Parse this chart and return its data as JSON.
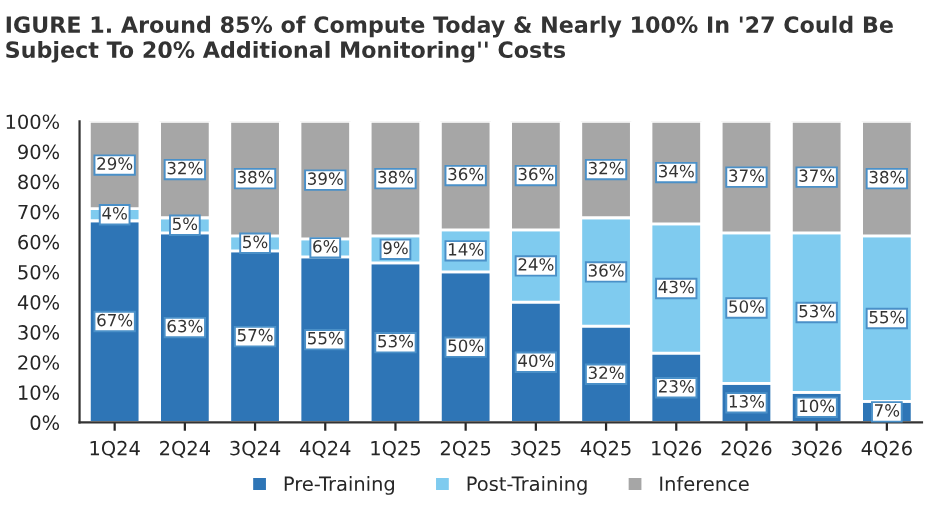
{
  "chart_data": {
    "type": "bar",
    "title": "IGURE 1. Around 85% of Compute Today & Nearly 100% In '27 Could Be Subject To 20% Additional Monitoring'' Costs",
    "categories": [
      "1Q24",
      "2Q24",
      "3Q24",
      "4Q24",
      "1Q25",
      "2Q25",
      "3Q25",
      "4Q25",
      "1Q26",
      "2Q26",
      "3Q26",
      "4Q26"
    ],
    "stacked": true,
    "series": [
      {
        "name": "Pre-Training",
        "color": "#2e75b6",
        "values": [
          67,
          63,
          57,
          55,
          53,
          50,
          40,
          32,
          23,
          13,
          10,
          7
        ],
        "value_labels": [
          "67%",
          "63%",
          "57%",
          "55%",
          "53%",
          "50%",
          "40%",
          "32%",
          "23%",
          "13%",
          "10%",
          "7%"
        ]
      },
      {
        "name": "Post-Training",
        "color": "#7fcbef",
        "values": [
          4,
          5,
          5,
          6,
          9,
          14,
          24,
          36,
          43,
          50,
          53,
          55
        ],
        "value_labels": [
          "4%",
          "5%",
          "5%",
          "6%",
          "9%",
          "14%",
          "24%",
          "36%",
          "43%",
          "50%",
          "53%",
          "55%"
        ]
      },
      {
        "name": "Inference",
        "color": "#a6a6a6",
        "values": [
          29,
          32,
          38,
          39,
          38,
          36,
          36,
          32,
          34,
          37,
          37,
          38
        ],
        "value_labels": [
          "29%",
          "32%",
          "38%",
          "39%",
          "38%",
          "36%",
          "36%",
          "32%",
          "34%",
          "37%",
          "37%",
          "38%"
        ]
      }
    ],
    "ylim": [
      0,
      100
    ],
    "yticks": [
      {
        "value": 0,
        "label": "0%"
      },
      {
        "value": 10,
        "label": "10%"
      },
      {
        "value": 20,
        "label": "20%"
      },
      {
        "value": 30,
        "label": "30%"
      },
      {
        "value": 40,
        "label": "40%"
      },
      {
        "value": 50,
        "label": "50%"
      },
      {
        "value": 60,
        "label": "60%"
      },
      {
        "value": 70,
        "label": "70%"
      },
      {
        "value": 80,
        "label": "80%"
      },
      {
        "value": 90,
        "label": "90%"
      },
      {
        "value": 100,
        "label": "100%"
      }
    ],
    "grid": false,
    "legend": "bottom"
  }
}
